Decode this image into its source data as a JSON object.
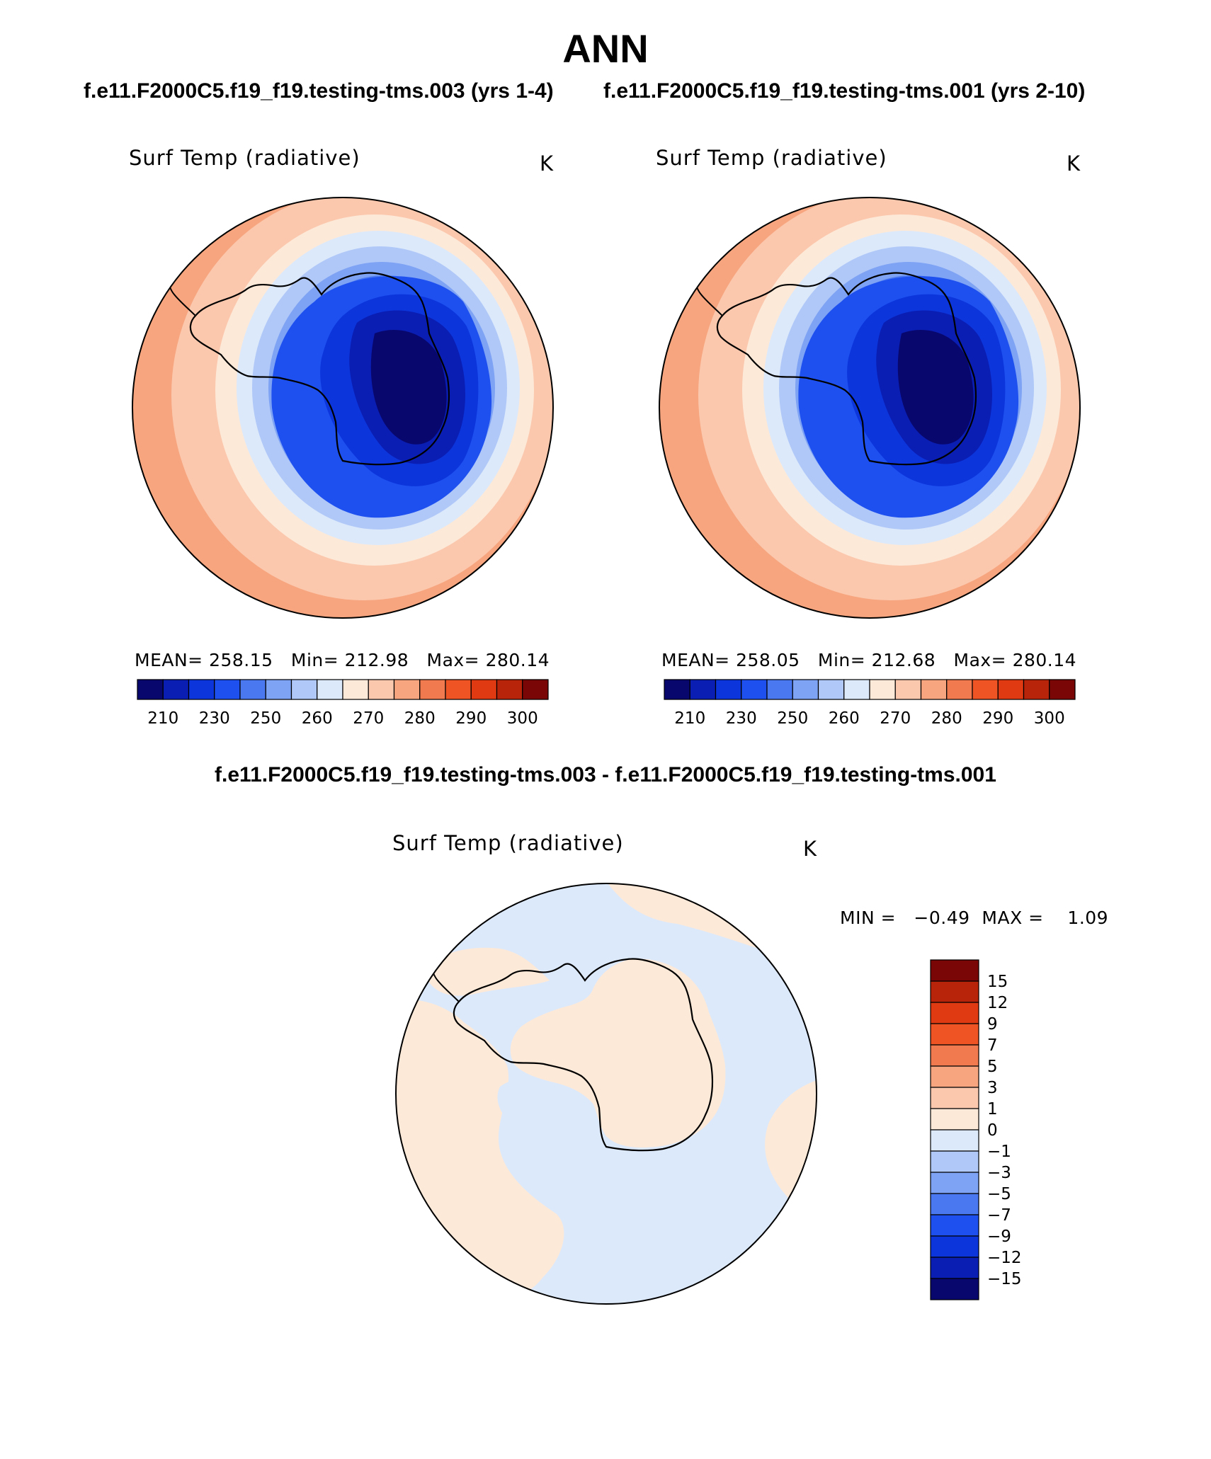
{
  "title": "ANN",
  "subtitle_left": "f.e11.F2000C5.f19_f19.testing-tms.003 (yrs 1-4)",
  "subtitle_right": "f.e11.F2000C5.f19_f19.testing-tms.001 (yrs 2-10)",
  "diff_subtitle": "f.e11.F2000C5.f19_f19.testing-tms.003 - f.e11.F2000C5.f19_f19.testing-tms.001",
  "panels": [
    {
      "variable": "Surf Temp (radiative)",
      "units": "K",
      "mean_label": "MEAN=",
      "mean": "258.15",
      "min_label": "Min=",
      "min": "212.98",
      "max_label": "Max=",
      "max": "280.14"
    },
    {
      "variable": "Surf Temp (radiative)",
      "units": "K",
      "mean_label": "MEAN=",
      "mean": "258.05",
      "min_label": "Min=",
      "min": "212.68",
      "max_label": "Max=",
      "max": "280.14"
    }
  ],
  "diff_panel": {
    "variable": "Surf Temp (radiative)",
    "units": "K",
    "min_label": "MIN =",
    "min": "−0.49",
    "max_label": "MAX =",
    "max": "1.09"
  },
  "colorbar_main": {
    "ticks": [
      "210",
      "230",
      "250",
      "260",
      "270",
      "280",
      "290",
      "300"
    ],
    "colors": [
      "#08076e",
      "#0a1eb4",
      "#0c36dc",
      "#1e50f0",
      "#4a78f0",
      "#7ea2f4",
      "#b0c8f8",
      "#dce9fb",
      "#fde9d8",
      "#fbc8ae",
      "#f7a57e",
      "#f17a4e",
      "#ee5424",
      "#e03a12",
      "#b8240a",
      "#7a0606"
    ]
  },
  "colorbar_diff": {
    "ticks": [
      "15",
      "12",
      "9",
      "7",
      "5",
      "3",
      "1",
      "0",
      "−1",
      "−3",
      "−5",
      "−7",
      "−9",
      "−12",
      "−15"
    ],
    "colors": [
      "#7a0606",
      "#b8240a",
      "#e03a12",
      "#ee5424",
      "#f17a4e",
      "#f7a57e",
      "#fbc8ae",
      "#fde9d8",
      "#dce9fb",
      "#b0c8f8",
      "#7ea2f4",
      "#4a78f0",
      "#1e50f0",
      "#0c36dc",
      "#0a1eb4",
      "#08076e"
    ]
  }
}
